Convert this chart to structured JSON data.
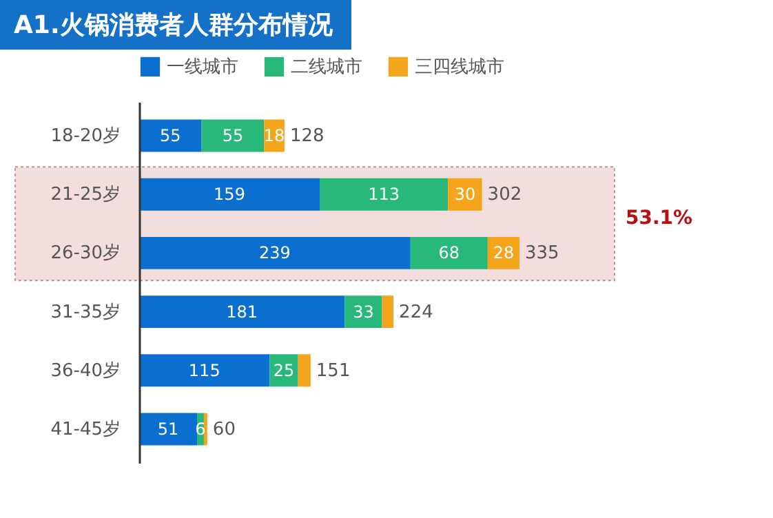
{
  "chart_data": {
    "type": "bar",
    "orientation": "horizontal",
    "stacked": true,
    "title": "A1.火锅消费者人群分布情况",
    "legend": "top",
    "categories": [
      "18-20岁",
      "21-25岁",
      "26-30岁",
      "31-35岁",
      "36-40岁",
      "41-45岁"
    ],
    "series": [
      {
        "name": "一线城市",
        "color": "#0b6fcf",
        "values": [
          55,
          159,
          239,
          181,
          115,
          51
        ],
        "value_labels": [
          "55",
          "159",
          "239",
          "181",
          "115",
          "51"
        ]
      },
      {
        "name": "二线城市",
        "color": "#27b87a",
        "values": [
          55,
          113,
          68,
          33,
          25,
          6
        ],
        "value_labels": [
          "55",
          "113",
          "68",
          "33",
          "25",
          "6"
        ]
      },
      {
        "name": "三四线城市",
        "color": "#f5a51c",
        "values": [
          18,
          30,
          28,
          10,
          11,
          3
        ],
        "value_labels": [
          "18",
          "30",
          "28",
          null,
          null,
          null
        ]
      }
    ],
    "totals": [
      "128",
      "302",
      "335",
      "224",
      "151",
      "60"
    ],
    "bands": [
      {
        "axis": "y",
        "from": "21-25岁",
        "to": "26-30岁",
        "label": "53.1%",
        "color": "#f3dede"
      }
    ]
  }
}
